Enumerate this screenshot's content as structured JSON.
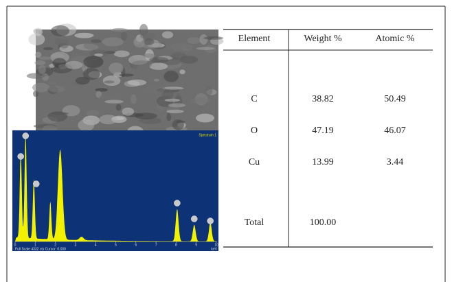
{
  "spectrum": {
    "title": "Spectrum 1",
    "axis_ticks": [
      "0",
      "1",
      "2",
      "3",
      "4",
      "5",
      "6",
      "7",
      "8",
      "9",
      "10"
    ],
    "footer": "Full Scale 4332 cts Cursor: 0.000",
    "unit": "keV"
  },
  "table": {
    "header": [
      "Element",
      "Weight %",
      "Atomic %"
    ],
    "rows": [
      [
        "C",
        "38.82",
        "50.49"
      ],
      [
        "O",
        "47.19",
        "46.07"
      ],
      [
        "Cu",
        "13.99",
        "3.44"
      ],
      [
        "Total",
        "100.00",
        ""
      ]
    ]
  }
}
